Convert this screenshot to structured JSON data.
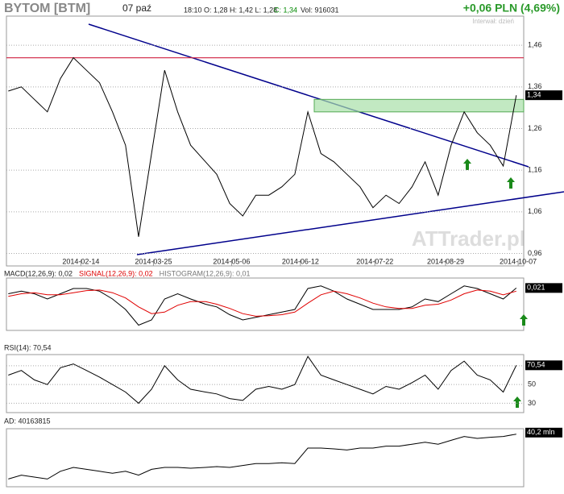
{
  "header": {
    "title": "BYTOM [BTM]",
    "date": "07 paź",
    "quote": "18:10  O: 1,28  H: 1,42  L: 1,28",
    "close": "C: 1,34",
    "volume": "Vol: 916031",
    "change": "+0,06 PLN (4,69%)",
    "interval": "Interwał: dzień",
    "watermark": "ATTrader.pl"
  },
  "chart_data": [
    {
      "type": "line",
      "xlim": [
        "2014-01-05",
        "2014-10-10"
      ],
      "ylim": [
        0.93,
        1.53
      ],
      "x": [
        "2014-01-06",
        "2014-01-13",
        "2014-01-20",
        "2014-01-27",
        "2014-02-03",
        "2014-02-10",
        "2014-02-17",
        "2014-02-24",
        "2014-03-03",
        "2014-03-10",
        "2014-03-17",
        "2014-03-24",
        "2014-03-31",
        "2014-04-07",
        "2014-04-14",
        "2014-04-22",
        "2014-04-28",
        "2014-05-05",
        "2014-05-12",
        "2014-05-19",
        "2014-05-26",
        "2014-06-02",
        "2014-06-09",
        "2014-06-16",
        "2014-06-23",
        "2014-06-30",
        "2014-07-07",
        "2014-07-14",
        "2014-07-21",
        "2014-07-28",
        "2014-08-04",
        "2014-08-11",
        "2014-08-18",
        "2014-08-25",
        "2014-09-01",
        "2014-09-08",
        "2014-09-15",
        "2014-09-22",
        "2014-09-29",
        "2014-10-06"
      ],
      "series": [
        {
          "color": "#000000",
          "values": [
            1.35,
            1.36,
            1.33,
            1.3,
            1.38,
            1.43,
            1.4,
            1.37,
            1.3,
            1.22,
            1.0,
            1.2,
            1.4,
            1.3,
            1.22,
            1.18,
            1.15,
            1.08,
            1.05,
            1.1,
            1.1,
            1.12,
            1.15,
            1.3,
            1.2,
            1.18,
            1.15,
            1.12,
            1.07,
            1.1,
            1.08,
            1.12,
            1.18,
            1.1,
            1.22,
            1.3,
            1.25,
            1.22,
            1.17,
            1.34
          ]
        }
      ],
      "xticks": [
        "2014-02-14",
        "2014-03-25",
        "2014-05-06",
        "2014-06-12",
        "2014-07-22",
        "2014-08-29",
        "2014-10-07"
      ],
      "yticks": [
        {
          "value": 1.46,
          "label": "1,46"
        },
        {
          "value": 1.36,
          "label": "1,36"
        },
        {
          "value": 1.26,
          "label": "1,26"
        },
        {
          "value": 1.16,
          "label": "1,16"
        },
        {
          "value": 1.06,
          "label": "1,06"
        },
        {
          "value": 0.96,
          "label": "0,96"
        }
      ],
      "hline": 1.43,
      "zone": [
        1.3,
        1.33
      ],
      "last": {
        "value": 1.34,
        "label": "1,34"
      }
    },
    {
      "type": "line",
      "title": "MACD(12,26,9): 0,02",
      "title2": "SIGNAL(12,26,9): 0,02",
      "title3": "HISTOGRAM(12,26,9): 0,01",
      "ylim": [
        -0.06,
        0.04
      ],
      "series": [
        {
          "color": "#000000",
          "values": [
            0.01,
            0.015,
            0.01,
            0.0,
            0.01,
            0.02,
            0.02,
            0.015,
            0.0,
            -0.02,
            -0.05,
            -0.04,
            0.0,
            0.01,
            0.0,
            -0.01,
            -0.015,
            -0.03,
            -0.04,
            -0.035,
            -0.03,
            -0.025,
            -0.02,
            0.02,
            0.025,
            0.015,
            0.0,
            -0.01,
            -0.02,
            -0.02,
            -0.02,
            -0.015,
            0.0,
            -0.005,
            0.01,
            0.025,
            0.02,
            0.01,
            0.0,
            0.021
          ]
        },
        {
          "color": "#e00000",
          "values": [
            0.005,
            0.01,
            0.012,
            0.008,
            0.008,
            0.012,
            0.016,
            0.017,
            0.012,
            0.002,
            -0.015,
            -0.028,
            -0.025,
            -0.012,
            -0.005,
            -0.005,
            -0.01,
            -0.018,
            -0.028,
            -0.033,
            -0.032,
            -0.03,
            -0.025,
            -0.008,
            0.008,
            0.015,
            0.01,
            0.002,
            -0.008,
            -0.015,
            -0.018,
            -0.018,
            -0.012,
            -0.01,
            -0.002,
            0.01,
            0.017,
            0.015,
            0.008,
            0.015
          ]
        }
      ],
      "last": {
        "value": 0.021,
        "label": "0,021"
      }
    },
    {
      "type": "line",
      "title": "RSI(14): 70,54",
      "ylim": [
        20,
        82
      ],
      "yticks": [
        70,
        50,
        30
      ],
      "series": [
        {
          "color": "#000000",
          "values": [
            60,
            65,
            55,
            50,
            68,
            72,
            65,
            58,
            50,
            42,
            30,
            45,
            70,
            55,
            45,
            42,
            40,
            35,
            33,
            45,
            48,
            45,
            50,
            80,
            60,
            55,
            50,
            45,
            40,
            48,
            45,
            52,
            60,
            45,
            65,
            75,
            60,
            55,
            42,
            70.54
          ]
        }
      ],
      "last": {
        "value": 70.54,
        "label": "70,54"
      }
    },
    {
      "type": "line",
      "title": "AD: 40163815",
      "ylim": [
        38.8,
        40.3
      ],
      "series": [
        {
          "color": "#000000",
          "values": [
            39.0,
            39.1,
            39.05,
            39.0,
            39.2,
            39.3,
            39.25,
            39.2,
            39.15,
            39.2,
            39.1,
            39.25,
            39.3,
            39.3,
            39.28,
            39.3,
            39.32,
            39.3,
            39.35,
            39.4,
            39.4,
            39.42,
            39.4,
            39.8,
            39.8,
            39.78,
            39.75,
            39.8,
            39.8,
            39.85,
            39.85,
            39.9,
            39.95,
            39.9,
            40.0,
            40.1,
            40.05,
            40.08,
            40.1,
            40.16
          ]
        }
      ],
      "last": {
        "value": 40.2,
        "label": "40,2 mln"
      }
    }
  ]
}
